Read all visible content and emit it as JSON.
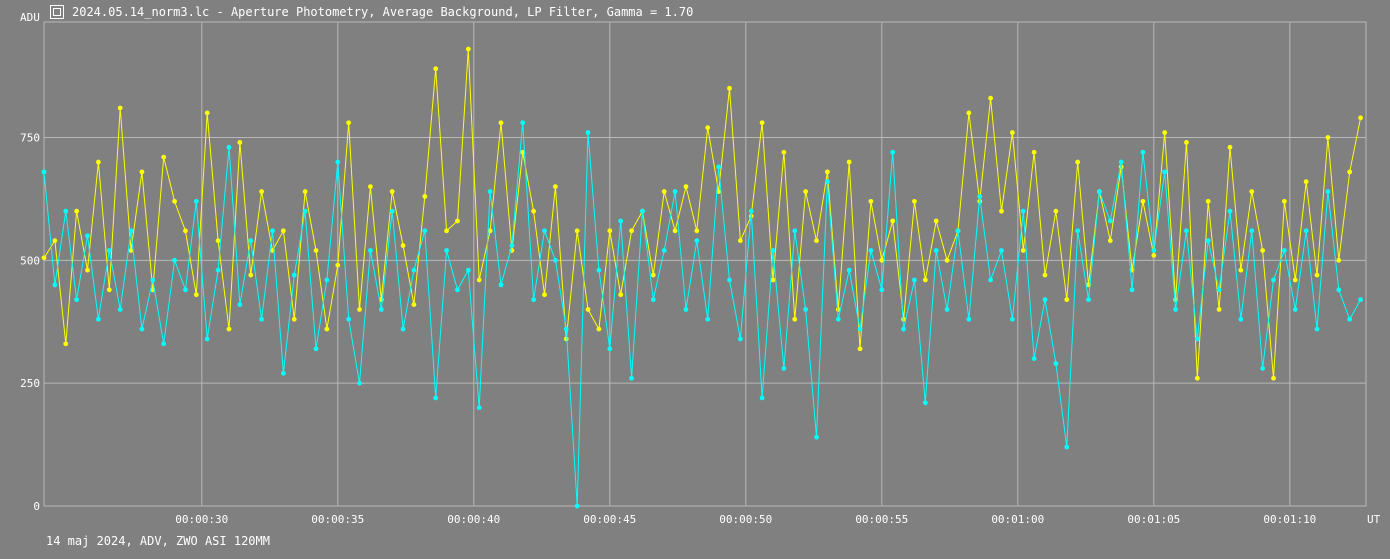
{
  "window": {
    "title": "2024.05.14_norm3.lc - Aperture Photometry, Average Background, LP Filter, Gamma = 1.70",
    "icon": "light-curve-app-icon"
  },
  "footer": {
    "text": "14 maj 2024, ADV, ZWO ASI 120MM"
  },
  "colors": {
    "background": "#808080",
    "grid": "#b8b8b8",
    "series_1": "#ffff00",
    "series_2": "#00ffff"
  },
  "chart_data": {
    "type": "line",
    "title": "",
    "ylabel": "ADU",
    "xlabel": "UT",
    "xlim": [
      24.2,
      72.8
    ],
    "ylim": [
      0,
      985
    ],
    "yticks": [
      0,
      250,
      500,
      750
    ],
    "xticks": [
      {
        "value": 30,
        "label": "00:00:30"
      },
      {
        "value": 35,
        "label": "00:00:35"
      },
      {
        "value": 40,
        "label": "00:00:40"
      },
      {
        "value": 45,
        "label": "00:00:45"
      },
      {
        "value": 50,
        "label": "00:00:50"
      },
      {
        "value": 55,
        "label": "00:00:55"
      },
      {
        "value": 60,
        "label": "00:01:00"
      },
      {
        "value": 65,
        "label": "00:01:05"
      },
      {
        "value": 70,
        "label": "00:01:10"
      }
    ],
    "grid": true,
    "markers": true,
    "series": [
      {
        "color": "#ffff00",
        "x": [
          24.2,
          24.6,
          25.0,
          25.4,
          25.8,
          26.2,
          26.6,
          27.0,
          27.4,
          27.8,
          28.2,
          28.6,
          29.0,
          29.4,
          29.8,
          30.2,
          30.6,
          31.0,
          31.4,
          31.8,
          32.2,
          32.6,
          33.0,
          33.4,
          33.8,
          34.2,
          34.6,
          35.0,
          35.4,
          35.8,
          36.2,
          36.6,
          37.0,
          37.4,
          37.8,
          38.2,
          38.6,
          39.0,
          39.4,
          39.8,
          40.2,
          40.6,
          41.0,
          41.4,
          41.8,
          42.2,
          42.6,
          43.0,
          43.4,
          43.8,
          44.2,
          44.6,
          45.0,
          45.4,
          45.8,
          46.2,
          46.6,
          47.0,
          47.4,
          47.8,
          48.2,
          48.6,
          49.0,
          49.4,
          49.8,
          50.2,
          50.6,
          51.0,
          51.4,
          51.8,
          52.2,
          52.6,
          53.0,
          53.4,
          53.8,
          54.2,
          54.6,
          55.0,
          55.4,
          55.8,
          56.2,
          56.6,
          57.0,
          57.4,
          57.8,
          58.2,
          58.6,
          59.0,
          59.4,
          59.8,
          60.2,
          60.6,
          61.0,
          61.4,
          61.8,
          62.2,
          62.6,
          63.0,
          63.4,
          63.8,
          64.2,
          64.6,
          65.0,
          65.4,
          65.8,
          66.2,
          66.6,
          67.0,
          67.4,
          67.8,
          68.2,
          68.6,
          69.0,
          69.4,
          69.8,
          70.2,
          70.6,
          71.0,
          71.4,
          71.8,
          72.2,
          72.6
        ],
        "y": [
          505,
          540,
          330,
          600,
          480,
          700,
          440,
          810,
          520,
          680,
          440,
          710,
          620,
          560,
          430,
          800,
          540,
          360,
          740,
          470,
          640,
          520,
          560,
          380,
          640,
          520,
          360,
          490,
          780,
          400,
          650,
          420,
          640,
          530,
          410,
          630,
          890,
          560,
          580,
          930,
          460,
          560,
          780,
          520,
          720,
          600,
          430,
          650,
          340,
          560,
          400,
          360,
          560,
          430,
          560,
          600,
          470,
          640,
          560,
          650,
          560,
          770,
          640,
          850,
          540,
          590,
          780,
          460,
          720,
          380,
          640,
          540,
          680,
          400,
          700,
          320,
          620,
          500,
          580,
          380,
          620,
          460,
          580,
          500,
          560,
          800,
          620,
          830,
          600,
          760,
          520,
          720,
          470,
          600,
          420,
          700,
          450,
          640,
          540,
          690,
          480,
          620,
          510,
          760,
          420,
          740,
          260,
          620,
          400,
          730,
          480,
          640,
          520,
          260,
          620,
          460,
          660,
          470,
          750,
          500,
          680,
          790
        ]
      },
      {
        "color": "#00ffff",
        "x": [
          24.2,
          24.6,
          25.0,
          25.4,
          25.8,
          26.2,
          26.6,
          27.0,
          27.4,
          27.8,
          28.2,
          28.6,
          29.0,
          29.4,
          29.8,
          30.2,
          30.6,
          31.0,
          31.4,
          31.8,
          32.2,
          32.6,
          33.0,
          33.4,
          33.8,
          34.2,
          34.6,
          35.0,
          35.4,
          35.8,
          36.2,
          36.6,
          37.0,
          37.4,
          37.8,
          38.2,
          38.6,
          39.0,
          39.4,
          39.8,
          40.2,
          40.6,
          41.0,
          41.4,
          41.8,
          42.2,
          42.6,
          43.0,
          43.4,
          43.8,
          44.2,
          44.6,
          45.0,
          45.4,
          45.8,
          46.2,
          46.6,
          47.0,
          47.4,
          47.8,
          48.2,
          48.6,
          49.0,
          49.4,
          49.8,
          50.2,
          50.6,
          51.0,
          51.4,
          51.8,
          52.2,
          52.6,
          53.0,
          53.4,
          53.8,
          54.2,
          54.6,
          55.0,
          55.4,
          55.8,
          56.2,
          56.6,
          57.0,
          57.4,
          57.8,
          58.2,
          58.6,
          59.0,
          59.4,
          59.8,
          60.2,
          60.6,
          61.0,
          61.4,
          61.8,
          62.2,
          62.6,
          63.0,
          63.4,
          63.8,
          64.2,
          64.6,
          65.0,
          65.4,
          65.8,
          66.2,
          66.6,
          67.0,
          67.4,
          67.8,
          68.2,
          68.6,
          69.0,
          69.4,
          69.8,
          70.2,
          70.6,
          71.0,
          71.4,
          71.8,
          72.2,
          72.6
        ],
        "y": [
          680,
          450,
          600,
          420,
          550,
          380,
          520,
          400,
          560,
          360,
          460,
          330,
          500,
          440,
          620,
          340,
          480,
          730,
          410,
          540,
          380,
          560,
          270,
          470,
          600,
          320,
          460,
          700,
          380,
          250,
          520,
          400,
          600,
          360,
          480,
          560,
          220,
          520,
          440,
          480,
          200,
          640,
          450,
          530,
          780,
          420,
          560,
          500,
          360,
          0,
          760,
          480,
          320,
          580,
          260,
          600,
          420,
          520,
          640,
          400,
          540,
          380,
          690,
          460,
          340,
          600,
          220,
          520,
          280,
          560,
          400,
          140,
          660,
          380,
          480,
          360,
          520,
          440,
          720,
          360,
          460,
          210,
          520,
          400,
          560,
          380,
          630,
          460,
          520,
          380,
          600,
          300,
          420,
          290,
          120,
          560,
          420,
          640,
          580,
          700,
          440,
          720,
          520,
          680,
          400,
          560,
          340,
          540,
          440,
          600,
          380,
          560,
          280,
          460,
          520,
          400,
          560,
          360,
          640,
          440,
          380,
          420
        ]
      }
    ]
  }
}
